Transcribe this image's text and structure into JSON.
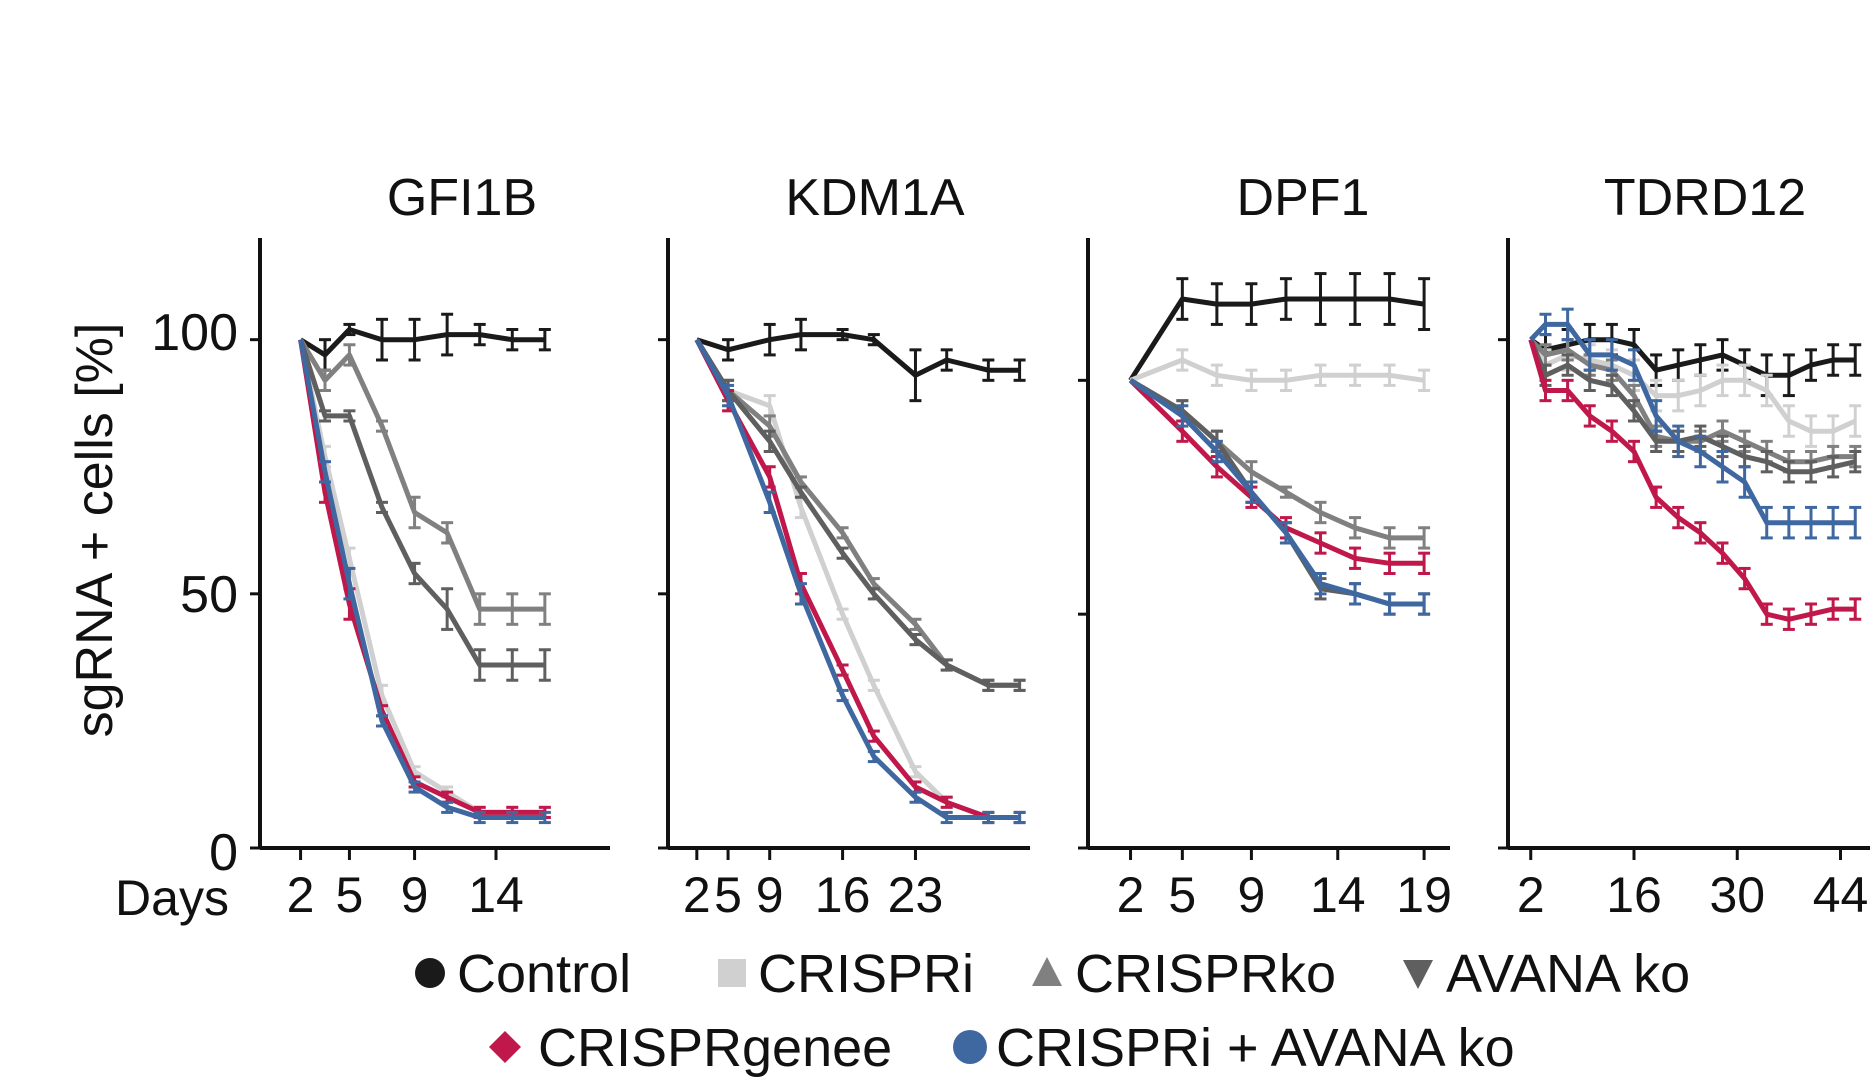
{
  "figure": {
    "ylabel": "sgRNA + cells [%]",
    "xaxis_label": "Days",
    "yticks": [
      "100",
      "50",
      "0"
    ]
  },
  "series_styles": [
    {
      "name": "Control",
      "color": "#1a1a1a",
      "marker": "circle"
    },
    {
      "name": "CRISPRi",
      "color": "#d0d0d0",
      "marker": "square"
    },
    {
      "name": "CRISPRko",
      "color": "#808080",
      "marker": "triangle-up"
    },
    {
      "name": "AVANA ko",
      "color": "#5f5f5f",
      "marker": "triangle-down"
    },
    {
      "name": "CRISPRgenee",
      "color": "#c0184a",
      "marker": "diamond"
    },
    {
      "name": "CRISPRi + AVANA ko",
      "color": "#3f67a0",
      "marker": "circle"
    }
  ],
  "legend": {
    "row1": [
      "Control",
      "CRISPRi",
      "CRISPRko",
      "AVANA ko"
    ],
    "row2": [
      "CRISPRgenee",
      "CRISPRi + AVANA ko"
    ]
  },
  "chart_data": [
    {
      "type": "line",
      "title": "GFI1B",
      "xlabel": "Days",
      "ylabel": "sgRNA + cells [%]",
      "xlim": [
        0,
        21
      ],
      "ylim": [
        0,
        120
      ],
      "xticks": [
        2,
        5,
        9,
        14
      ],
      "x": [
        2,
        3.5,
        5,
        7,
        9,
        11,
        13,
        15,
        17
      ],
      "series": [
        {
          "name": "Control",
          "values": [
            100,
            97,
            102,
            100,
            100,
            101,
            101,
            100,
            100
          ],
          "err": [
            0,
            3,
            1,
            4,
            4,
            4,
            2,
            2,
            2
          ]
        },
        {
          "name": "CRISPRi",
          "values": [
            100,
            77,
            57,
            30,
            15,
            11,
            7,
            7,
            7
          ],
          "err": [
            0,
            2,
            2,
            2,
            1,
            1,
            1,
            1,
            1
          ]
        },
        {
          "name": "CRISPRko",
          "values": [
            100,
            92,
            97,
            83,
            66,
            62,
            47,
            47,
            47
          ],
          "err": [
            0,
            2,
            2,
            1,
            3,
            2,
            3,
            3,
            3
          ]
        },
        {
          "name": "AVANA ko",
          "values": [
            100,
            85,
            85,
            67,
            54,
            47,
            36,
            36,
            36
          ],
          "err": [
            0,
            1,
            1,
            1,
            2,
            4,
            3,
            3,
            3
          ]
        },
        {
          "name": "CRISPRgenee",
          "values": [
            100,
            70,
            48,
            27,
            13,
            10,
            7,
            7,
            7
          ],
          "err": [
            0,
            2,
            3,
            1,
            1,
            1,
            1,
            1,
            1
          ]
        },
        {
          "name": "CRISPRi + AVANA ko",
          "values": [
            100,
            74,
            52,
            25,
            12,
            8,
            6,
            6,
            6
          ],
          "err": [
            0,
            2,
            3,
            1,
            1,
            1,
            1,
            1,
            1
          ]
        }
      ]
    },
    {
      "type": "line",
      "title": "KDM1A",
      "xlabel": "Days",
      "ylabel": "sgRNA + cells [%]",
      "xlim": [
        0,
        34
      ],
      "ylim": [
        0,
        120
      ],
      "xticks": [
        2,
        5,
        9,
        16,
        23
      ],
      "x": [
        2,
        5,
        9,
        12,
        16,
        19,
        23,
        26,
        30,
        33
      ],
      "series": [
        {
          "name": "Control",
          "values": [
            100,
            98,
            100,
            101,
            101,
            100,
            93,
            96,
            94,
            94
          ],
          "err": [
            0,
            2,
            3,
            3,
            1,
            1,
            5,
            2,
            2,
            2
          ]
        },
        {
          "name": "CRISPRi",
          "values": [
            100,
            90,
            87,
            67,
            46,
            32,
            15,
            9,
            6,
            6
          ],
          "err": [
            0,
            2,
            2,
            2,
            1,
            1,
            1,
            1,
            1,
            1
          ]
        },
        {
          "name": "CRISPRko",
          "values": [
            100,
            90,
            83,
            72,
            62,
            52,
            44,
            36,
            32,
            32
          ],
          "err": [
            0,
            2,
            2,
            1,
            1,
            1,
            1,
            1,
            1,
            1
          ]
        },
        {
          "name": "AVANA ko",
          "values": [
            100,
            90,
            80,
            70,
            58,
            50,
            41,
            36,
            32,
            32
          ],
          "err": [
            0,
            2,
            2,
            1,
            1,
            1,
            1,
            1,
            1,
            1
          ]
        },
        {
          "name": "CRISPRgenee",
          "values": [
            100,
            88,
            73,
            52,
            35,
            22,
            12,
            9,
            6,
            6
          ],
          "err": [
            0,
            2,
            2,
            2,
            1,
            1,
            1,
            1,
            1,
            1
          ]
        },
        {
          "name": "CRISPRi + AVANA ko",
          "values": [
            100,
            89,
            68,
            50,
            30,
            18,
            10,
            6,
            6,
            6
          ],
          "err": [
            0,
            2,
            2,
            2,
            1,
            1,
            1,
            1,
            1,
            1
          ]
        }
      ]
    },
    {
      "type": "line",
      "title": "DPF1",
      "xlabel": "Days",
      "ylabel": "sgRNA + cells [%]",
      "xlim": [
        0,
        20.5
      ],
      "ylim": [
        0,
        120
      ],
      "xticks": [
        2,
        5,
        9,
        14,
        19
      ],
      "x": [
        2,
        5,
        7,
        9,
        11,
        13,
        15,
        17,
        19
      ],
      "series": [
        {
          "name": "Control",
          "values": [
            92,
            108,
            107,
            107,
            108,
            108,
            108,
            108,
            107
          ],
          "err": [
            0,
            4,
            4,
            4,
            4,
            5,
            5,
            5,
            5
          ]
        },
        {
          "name": "CRISPRi",
          "values": [
            92,
            96,
            93,
            92,
            92,
            93,
            93,
            93,
            92
          ],
          "err": [
            0,
            2,
            2,
            2,
            2,
            2,
            2,
            2,
            2
          ]
        },
        {
          "name": "CRISPRko",
          "values": [
            92,
            86,
            80,
            74,
            70,
            66,
            63,
            61,
            61
          ],
          "err": [
            0,
            2,
            2,
            2,
            1,
            2,
            2,
            2,
            2
          ]
        },
        {
          "name": "AVANA ko",
          "values": [
            92,
            86,
            80,
            70,
            62,
            51,
            50,
            48,
            48
          ],
          "err": [
            0,
            2,
            2,
            2,
            2,
            2,
            2,
            2,
            2
          ]
        },
        {
          "name": "CRISPRgenee",
          "values": [
            92,
            82,
            75,
            69,
            63,
            60,
            57,
            56,
            56
          ],
          "err": [
            0,
            2,
            2,
            2,
            2,
            2,
            2,
            2,
            2
          ]
        },
        {
          "name": "CRISPRi + AVANA ko",
          "values": [
            92,
            85,
            78,
            70,
            62,
            52,
            50,
            48,
            48
          ],
          "err": [
            0,
            2,
            2,
            2,
            2,
            2,
            2,
            2,
            2
          ]
        }
      ]
    },
    {
      "type": "line",
      "title": "TDRD12",
      "xlabel": "Days",
      "ylabel": "sgRNA + cells [%]",
      "xlim": [
        0,
        48
      ],
      "ylim": [
        0,
        120
      ],
      "xticks": [
        2,
        16,
        30,
        44
      ],
      "x": [
        2,
        4,
        7,
        10,
        13,
        16,
        19,
        22,
        25,
        28,
        31,
        34,
        37,
        40,
        43,
        46
      ],
      "series": [
        {
          "name": "Control",
          "values": [
            100,
            98,
            99,
            100,
            100,
            99,
            94,
            95,
            96,
            97,
            95,
            93,
            93,
            95,
            96,
            96
          ],
          "err": [
            0,
            3,
            3,
            3,
            3,
            3,
            3,
            3,
            3,
            3,
            3,
            4,
            4,
            3,
            3,
            3
          ]
        },
        {
          "name": "CRISPRi",
          "values": [
            100,
            95,
            97,
            96,
            95,
            93,
            89,
            89,
            90,
            92,
            92,
            90,
            84,
            82,
            82,
            84
          ],
          "err": [
            0,
            3,
            3,
            3,
            3,
            3,
            3,
            3,
            3,
            3,
            3,
            3,
            3,
            3,
            3,
            3
          ]
        },
        {
          "name": "CRISPRko",
          "values": [
            100,
            97,
            98,
            95,
            94,
            89,
            81,
            80,
            80,
            82,
            80,
            78,
            76,
            76,
            77,
            77
          ],
          "err": [
            0,
            2,
            2,
            2,
            2,
            2,
            2,
            2,
            2,
            2,
            2,
            2,
            2,
            2,
            2,
            2
          ]
        },
        {
          "name": "AVANA ko",
          "values": [
            100,
            93,
            95,
            92,
            91,
            86,
            80,
            80,
            81,
            79,
            77,
            76,
            74,
            74,
            75,
            76
          ],
          "err": [
            0,
            2,
            2,
            2,
            2,
            2,
            2,
            2,
            2,
            2,
            2,
            2,
            2,
            2,
            2,
            2
          ]
        },
        {
          "name": "CRISPRgenee",
          "values": [
            100,
            90,
            90,
            85,
            82,
            78,
            69,
            65,
            62,
            58,
            53,
            46,
            45,
            46,
            47,
            47
          ],
          "err": [
            0,
            2,
            2,
            2,
            2,
            2,
            2,
            2,
            2,
            2,
            2,
            2,
            2,
            2,
            2,
            2
          ]
        },
        {
          "name": "CRISPRi + AVANA ko",
          "values": [
            100,
            103,
            103,
            97,
            97,
            95,
            85,
            80,
            78,
            75,
            72,
            64,
            64,
            64,
            64,
            64
          ],
          "err": [
            0,
            2,
            3,
            3,
            3,
            3,
            3,
            3,
            3,
            3,
            3,
            3,
            3,
            3,
            3,
            3
          ]
        }
      ]
    }
  ]
}
